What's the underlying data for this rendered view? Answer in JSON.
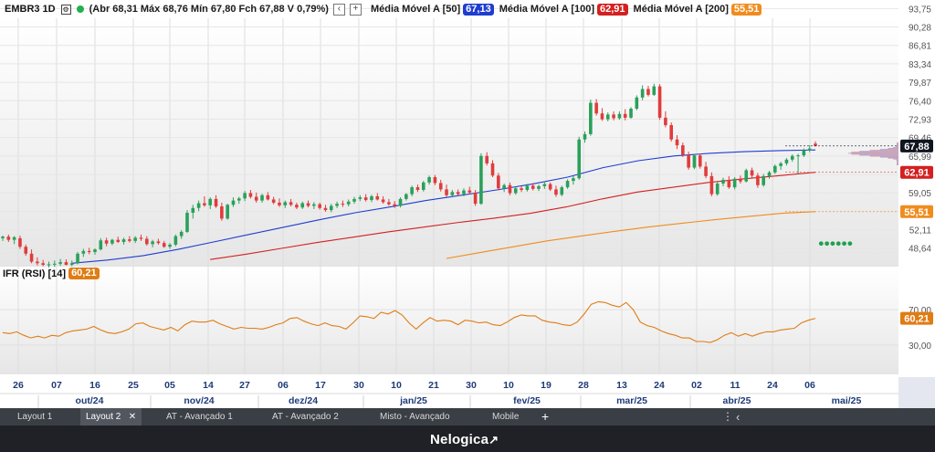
{
  "header": {
    "symbol": "EMBR3 1D",
    "ohlc": "(Abr 68,31 Máx 68,76 Mín 67,80 Fch 67,88 V 0,79%)",
    "ma50_label": "Média Móvel A [50]",
    "ma50_value": "67,13",
    "ma100_label": "Média Móvel A [100]",
    "ma100_value": "62,91",
    "ma200_label": "Média Móvel A [200]",
    "ma200_value": "55,51"
  },
  "rsi": {
    "label": "IFR (RSI) [14]",
    "value": "60,21"
  },
  "colors": {
    "up": "#2aa05a",
    "down": "#e03c3c",
    "ma50": "#1f3dd0",
    "ma100": "#d42020",
    "ma200": "#f08c1e",
    "rsi": "#e07c14",
    "last": "#10151f"
  },
  "chart_data": {
    "type": "candlestick",
    "price_axis": {
      "ticks": [
        "93,75",
        "90,28",
        "86,81",
        "83,34",
        "79,87",
        "76,40",
        "72,93",
        "69,46",
        "65,99",
        "62,52",
        "59,05",
        "55,58",
        "52,11",
        "48,64"
      ],
      "ylim": [
        45.5,
        94.5
      ]
    },
    "rsi_axis": {
      "ticks": [
        "70,00",
        "30,00"
      ],
      "ylim": [
        0,
        100
      ]
    },
    "price_labels": [
      {
        "text": "67,88",
        "color": "#10151f",
        "value": 67.88
      },
      {
        "text": "62,91",
        "color": "#d42020",
        "value": 62.91
      },
      {
        "text": "55,51",
        "color": "#f08c1e",
        "value": 55.51
      }
    ],
    "rsi_label": {
      "text": "60,21",
      "color": "#e07c14",
      "value": 60.21
    },
    "days": [
      "26",
      "07",
      "16",
      "25",
      "05",
      "14",
      "27",
      "06",
      "17",
      "30",
      "10",
      "21",
      "30",
      "10",
      "19",
      "28",
      "13",
      "24",
      "02",
      "11",
      "24",
      "06"
    ],
    "months": [
      "out/24",
      "nov/24",
      "dez/24",
      "jan/25",
      "fev/25",
      "mar/25",
      "abr/25",
      "mai/25"
    ],
    "candles": [
      [
        50.5,
        51.0,
        50.0,
        50.8
      ],
      [
        50.8,
        51.2,
        49.8,
        50.2
      ],
      [
        50.2,
        50.9,
        49.4,
        50.7
      ],
      [
        50.5,
        51.0,
        48.5,
        48.9
      ],
      [
        48.9,
        49.3,
        47.2,
        47.6
      ],
      [
        47.6,
        48.4,
        45.8,
        46.1
      ],
      [
        46.1,
        46.9,
        45.4,
        45.8
      ],
      [
        45.8,
        46.4,
        45.2,
        45.5
      ],
      [
        45.5,
        46.1,
        45.0,
        45.6
      ],
      [
        45.6,
        46.3,
        45.1,
        45.7
      ],
      [
        45.7,
        46.6,
        45.3,
        46.0
      ],
      [
        46.0,
        46.5,
        45.4,
        45.5
      ],
      [
        45.5,
        46.3,
        45.2,
        45.8
      ],
      [
        45.8,
        47.9,
        45.6,
        47.6
      ],
      [
        47.6,
        48.5,
        47.0,
        48.1
      ],
      [
        48.1,
        48.7,
        47.5,
        47.9
      ],
      [
        47.9,
        48.6,
        47.4,
        48.4
      ],
      [
        48.4,
        50.5,
        48.2,
        50.1
      ],
      [
        50.1,
        50.6,
        49.0,
        49.5
      ],
      [
        49.5,
        50.4,
        49.2,
        50.2
      ],
      [
        50.2,
        50.8,
        49.6,
        49.8
      ],
      [
        49.8,
        50.6,
        49.3,
        50.3
      ],
      [
        50.3,
        50.9,
        49.7,
        50.0
      ],
      [
        50.0,
        50.9,
        49.6,
        50.6
      ],
      [
        50.6,
        51.2,
        50.0,
        50.4
      ],
      [
        50.4,
        50.9,
        49.1,
        49.4
      ],
      [
        49.4,
        50.2,
        48.8,
        49.9
      ],
      [
        49.9,
        50.4,
        49.3,
        49.6
      ],
      [
        49.6,
        50.0,
        48.7,
        48.9
      ],
      [
        48.9,
        49.6,
        48.5,
        49.3
      ],
      [
        49.3,
        51.2,
        49.0,
        50.9
      ],
      [
        50.9,
        52.0,
        50.4,
        51.7
      ],
      [
        51.7,
        55.8,
        51.5,
        55.3
      ],
      [
        55.3,
        56.8,
        54.2,
        56.2
      ],
      [
        56.2,
        57.6,
        55.6,
        57.1
      ],
      [
        57.1,
        58.4,
        56.4,
        56.7
      ],
      [
        56.7,
        58.2,
        56.0,
        57.9
      ],
      [
        57.9,
        58.6,
        56.2,
        56.5
      ],
      [
        56.5,
        57.2,
        53.8,
        54.2
      ],
      [
        54.2,
        57.0,
        54.0,
        56.8
      ],
      [
        56.8,
        58.2,
        56.4,
        57.6
      ],
      [
        57.6,
        58.3,
        57.0,
        58.0
      ],
      [
        58.0,
        59.4,
        57.5,
        59.0
      ],
      [
        59.0,
        59.6,
        58.0,
        58.3
      ],
      [
        58.3,
        59.1,
        57.2,
        57.6
      ],
      [
        57.6,
        58.9,
        57.2,
        58.6
      ],
      [
        58.6,
        59.2,
        57.6,
        57.8
      ],
      [
        57.8,
        58.3,
        56.9,
        57.2
      ],
      [
        57.2,
        58.0,
        56.4,
        56.7
      ],
      [
        56.7,
        57.6,
        56.2,
        57.3
      ],
      [
        57.3,
        57.9,
        56.5,
        56.8
      ],
      [
        56.8,
        57.2,
        56.0,
        56.3
      ],
      [
        56.3,
        57.4,
        56.0,
        57.1
      ],
      [
        57.1,
        57.6,
        56.3,
        56.6
      ],
      [
        56.6,
        57.3,
        56.0,
        56.9
      ],
      [
        56.9,
        57.2,
        55.9,
        56.2
      ],
      [
        56.2,
        56.8,
        55.5,
        55.8
      ],
      [
        55.8,
        57.0,
        55.4,
        56.6
      ],
      [
        56.6,
        57.4,
        56.2,
        57.0
      ],
      [
        57.0,
        57.6,
        56.4,
        56.9
      ],
      [
        56.9,
        57.8,
        56.5,
        57.4
      ],
      [
        57.4,
        58.3,
        57.0,
        57.9
      ],
      [
        57.9,
        58.6,
        57.5,
        58.2
      ],
      [
        58.2,
        58.8,
        57.4,
        57.7
      ],
      [
        57.7,
        58.7,
        57.3,
        58.4
      ],
      [
        58.4,
        59.0,
        57.6,
        57.8
      ],
      [
        57.8,
        58.4,
        57.0,
        57.3
      ],
      [
        57.3,
        57.9,
        56.6,
        56.9
      ],
      [
        56.9,
        57.5,
        56.2,
        56.6
      ],
      [
        56.6,
        58.2,
        56.3,
        57.9
      ],
      [
        57.9,
        59.0,
        57.6,
        58.8
      ],
      [
        58.8,
        60.4,
        58.4,
        60.1
      ],
      [
        60.1,
        60.6,
        59.2,
        59.6
      ],
      [
        59.6,
        61.3,
        59.3,
        61.0
      ],
      [
        61.0,
        62.3,
        60.6,
        62.0
      ],
      [
        62.0,
        62.4,
        60.5,
        60.9
      ],
      [
        60.9,
        61.5,
        59.3,
        59.7
      ],
      [
        59.7,
        60.6,
        58.3,
        58.6
      ],
      [
        58.6,
        59.6,
        58.2,
        59.2
      ],
      [
        59.2,
        59.7,
        58.5,
        58.8
      ],
      [
        58.8,
        59.9,
        58.4,
        59.5
      ],
      [
        59.5,
        60.2,
        58.8,
        59.1
      ],
      [
        59.1,
        59.6,
        56.6,
        57.0
      ],
      [
        57.0,
        66.5,
        56.8,
        66.0
      ],
      [
        66.0,
        66.7,
        64.2,
        64.6
      ],
      [
        64.6,
        65.2,
        62.0,
        62.3
      ],
      [
        62.3,
        62.8,
        59.5,
        59.9
      ],
      [
        59.9,
        60.8,
        59.2,
        60.5
      ],
      [
        60.5,
        61.0,
        58.6,
        59.0
      ],
      [
        59.0,
        60.2,
        58.7,
        59.9
      ],
      [
        59.9,
        60.3,
        59.2,
        59.6
      ],
      [
        59.6,
        60.7,
        59.3,
        60.4
      ],
      [
        60.4,
        60.9,
        59.5,
        59.8
      ],
      [
        59.8,
        60.6,
        59.4,
        60.3
      ],
      [
        60.3,
        61.2,
        59.8,
        60.7
      ],
      [
        60.7,
        61.0,
        59.4,
        59.7
      ],
      [
        59.7,
        60.4,
        58.3,
        58.7
      ],
      [
        58.7,
        60.4,
        58.4,
        60.1
      ],
      [
        60.1,
        61.6,
        59.8,
        61.3
      ],
      [
        61.3,
        62.2,
        60.6,
        61.8
      ],
      [
        61.8,
        69.6,
        61.5,
        69.1
      ],
      [
        69.1,
        70.6,
        68.5,
        70.1
      ],
      [
        70.1,
        76.6,
        69.8,
        76.0
      ],
      [
        76.0,
        76.7,
        73.6,
        74.0
      ],
      [
        74.0,
        75.0,
        72.6,
        72.9
      ],
      [
        72.9,
        74.2,
        72.5,
        73.8
      ],
      [
        73.8,
        74.4,
        72.7,
        73.1
      ],
      [
        73.1,
        74.4,
        72.8,
        73.9
      ],
      [
        73.9,
        74.8,
        72.7,
        73.2
      ],
      [
        73.2,
        75.2,
        73.0,
        74.9
      ],
      [
        74.9,
        77.4,
        74.6,
        77.0
      ],
      [
        77.0,
        79.3,
        76.5,
        78.6
      ],
      [
        78.6,
        79.2,
        77.2,
        77.5
      ],
      [
        77.5,
        79.6,
        77.3,
        79.1
      ],
      [
        79.1,
        79.5,
        72.8,
        73.2
      ],
      [
        73.2,
        74.4,
        71.4,
        71.8
      ],
      [
        71.8,
        72.3,
        68.7,
        69.1
      ],
      [
        69.1,
        69.9,
        67.3,
        68.0
      ],
      [
        68.0,
        68.5,
        65.8,
        66.2
      ],
      [
        66.2,
        66.8,
        63.4,
        63.8
      ],
      [
        63.8,
        66.4,
        63.5,
        66.1
      ],
      [
        66.1,
        66.4,
        63.6,
        64.0
      ],
      [
        64.0,
        64.9,
        61.8,
        62.2
      ],
      [
        62.2,
        62.9,
        58.4,
        58.8
      ],
      [
        58.8,
        61.2,
        58.5,
        60.8
      ],
      [
        60.8,
        61.9,
        60.3,
        61.5
      ],
      [
        61.5,
        62.2,
        59.8,
        60.1
      ],
      [
        60.1,
        62.0,
        59.7,
        61.7
      ],
      [
        61.7,
        62.3,
        60.8,
        61.2
      ],
      [
        61.2,
        63.6,
        61.0,
        63.3
      ],
      [
        63.3,
        63.8,
        61.9,
        62.3
      ],
      [
        62.3,
        62.8,
        60.0,
        60.5
      ],
      [
        60.5,
        62.6,
        60.2,
        62.2
      ],
      [
        62.2,
        63.2,
        61.7,
        62.9
      ],
      [
        62.9,
        64.4,
        62.6,
        64.1
      ],
      [
        64.1,
        64.9,
        63.4,
        64.6
      ],
      [
        64.6,
        65.6,
        64.2,
        65.3
      ],
      [
        65.3,
        66.3,
        64.9,
        66.0
      ],
      [
        66.0,
        66.4,
        62.7,
        66.1
      ],
      [
        66.1,
        67.4,
        65.8,
        67.1
      ],
      [
        67.1,
        68.0,
        66.7,
        67.4
      ],
      [
        68.31,
        68.76,
        67.8,
        67.88
      ]
    ],
    "ma50": {
      "start": 12,
      "values": [
        45.8,
        46.4,
        47.2,
        48.4,
        49.8,
        51.2,
        52.6,
        54.0,
        55.3,
        56.4,
        57.6,
        58.6,
        59.6,
        60.7,
        62.0,
        63.8,
        65.1,
        66.0,
        66.5,
        66.8,
        67.0,
        67.13
      ]
    },
    "ma100": {
      "start": 36,
      "values": [
        46.5,
        47.5,
        48.6,
        49.7,
        50.7,
        51.7,
        52.6,
        53.5,
        54.3,
        55.2,
        56.4,
        57.9,
        59.2,
        60.1,
        61.0,
        61.7,
        62.3,
        62.91
      ]
    },
    "ma200": {
      "start": 77,
      "values": [
        46.7,
        47.8,
        48.9,
        50.0,
        50.9,
        51.8,
        52.6,
        53.3,
        54.0,
        54.6,
        55.2,
        55.51
      ]
    },
    "rsi": [
      44,
      43,
      45,
      41,
      38,
      40,
      38,
      41,
      40,
      44,
      46,
      47,
      48,
      51,
      47,
      44,
      43,
      45,
      48,
      54,
      55,
      51,
      49,
      47,
      50,
      46,
      53,
      57,
      56,
      56,
      58,
      54,
      51,
      48,
      50,
      49,
      49,
      48,
      50,
      53,
      55,
      60,
      61,
      57,
      54,
      52,
      55,
      52,
      51,
      48,
      55,
      63,
      62,
      60,
      67,
      65,
      69,
      64,
      55,
      48,
      55,
      61,
      57,
      58,
      57,
      53,
      58,
      57,
      55,
      56,
      53,
      52,
      56,
      61,
      64,
      63,
      63,
      58,
      56,
      55,
      53,
      52,
      56,
      65,
      76,
      79,
      78,
      75,
      73,
      78,
      70,
      56,
      52,
      50,
      46,
      43,
      41,
      38,
      38,
      34,
      34,
      33,
      36,
      41,
      44,
      40,
      43,
      40,
      43,
      45,
      45,
      47,
      48,
      49,
      55,
      58,
      60.21
    ],
    "signals": [
      {
        "index": 142,
        "value": 49.5
      },
      {
        "index": 143,
        "value": 49.5
      },
      {
        "index": 144,
        "value": 49.5
      },
      {
        "index": 145,
        "value": 49.5
      },
      {
        "index": 146,
        "value": 49.5
      },
      {
        "index": 147,
        "value": 49.5
      }
    ]
  },
  "tabs": [
    "Layout 1",
    "Layout 2",
    "AT - Avançado 1",
    "AT - Avançado 2",
    "Misto - Avançado",
    "Mobile"
  ],
  "footer": {
    "brand": "Nelogica"
  }
}
